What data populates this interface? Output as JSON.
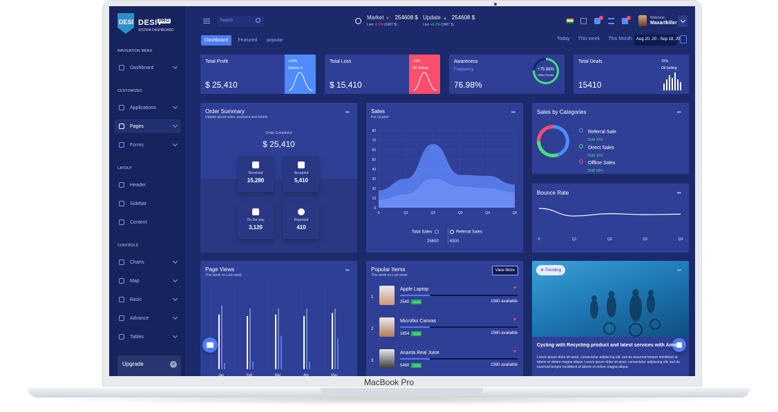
{
  "device": {
    "label": "MacBook Pro"
  },
  "sidebar": {
    "brand": "DESIT",
    "brand_badge": "PRO",
    "brand_mark": "DESIT",
    "brand_sub": "SISTEM DASHBOARD",
    "sections": [
      "NAVIGATION MENU",
      "CUSTOMIZED",
      "LAYOUT",
      "CONTROLS"
    ],
    "items": [
      {
        "label": "Dashboard"
      },
      {
        "label": "Applications"
      },
      {
        "label": "Pages"
      },
      {
        "label": "Forms"
      },
      {
        "label": "Header"
      },
      {
        "label": "Sidebar"
      },
      {
        "label": "Content"
      },
      {
        "label": "Charts"
      },
      {
        "label": "Map"
      },
      {
        "label": "Basic"
      },
      {
        "label": "Advance"
      },
      {
        "label": "Tables"
      }
    ],
    "upgrade": "Upgrade"
  },
  "topbar": {
    "search_placeholder": "Search",
    "market": {
      "label": "Market",
      "value": "254608 $",
      "sub_prefix": "Live",
      "change": "-0.1%",
      "delta": "(2487 $)"
    },
    "update": {
      "label": "Update",
      "value": "254608 $",
      "sub_prefix": "Live",
      "change": "+0.1%",
      "delta": "(2487 $)"
    },
    "welcome": "Welcome,",
    "user": "Maxartkiller"
  },
  "tabs": [
    "Dashboard",
    "Featured",
    "popular"
  ],
  "periods": [
    "Today",
    "This week",
    "This Month"
  ],
  "date_range": "Aug 20, 20 - Sep 18, 20",
  "stats": [
    {
      "title": "Total Profit",
      "value": "$ 25,410",
      "pct": "+20%",
      "side": "Quarter 3",
      "color": "#4e8cff"
    },
    {
      "title": "Total Loss",
      "value": "$ 15,410",
      "pct": "-20%",
      "side": "Oil Selling",
      "color": "#ff4d6d"
    },
    {
      "title": "Awareness",
      "sub": "Frequency",
      "value": "76.98%",
      "ring_pct": "+75.98%",
      "ring_label": "Male-Female",
      "ring_fill": 0.76
    },
    {
      "title": "Total Deals",
      "value": "15410",
      "pct": "15%",
      "side": "Oil Selling"
    }
  ],
  "order_summary": {
    "title": "Order Summary",
    "subtitle": "Update about sales, payment and tickets",
    "completed_label": "Order Completed",
    "completed_value": "$ 25,410",
    "cards": [
      {
        "label": "Received",
        "value": "15,280"
      },
      {
        "label": "Accepted",
        "value": "5,410"
      },
      {
        "label": "On the way",
        "value": "3,120"
      },
      {
        "label": "Reported",
        "value": "410"
      }
    ]
  },
  "sales": {
    "title": "Sales",
    "subtitle": "Per Quarter",
    "legend": [
      {
        "name": "Total Sales",
        "value": "25600"
      },
      {
        "name": "Referral Sales",
        "value": "6500"
      }
    ]
  },
  "chart_data": [
    {
      "type": "area",
      "x": [
        "0",
        "Q1",
        "Q2",
        "Q3",
        "Q4",
        "Q5"
      ],
      "ylim": [
        0,
        80
      ],
      "yticks": [
        0,
        10,
        20,
        30,
        40,
        50,
        60,
        70,
        80
      ],
      "series": [
        {
          "name": "Total Sales",
          "values": [
            18,
            30,
            66,
            34,
            33,
            24
          ]
        },
        {
          "name": "Referral Sales",
          "values": [
            8,
            14,
            30,
            22,
            20,
            16
          ]
        }
      ]
    },
    {
      "type": "line",
      "x": [
        "0",
        "Q1",
        "Q2",
        "Q3",
        "Q4"
      ],
      "values": [
        1.0,
        0.45,
        0.62,
        0.55,
        0.58
      ]
    },
    {
      "type": "bar",
      "categories": [
        "Jan",
        "Feb",
        "Mar",
        "Apr",
        "May"
      ],
      "series": [
        {
          "values": [
            72,
            70,
            72,
            70,
            74
          ]
        },
        {
          "values": [
            84,
            80,
            80,
            80,
            80
          ]
        },
        {
          "values": [
            8,
            10,
            44,
            10,
            40
          ]
        }
      ]
    }
  ],
  "sales_by_categories": {
    "title": "Sales by Categories",
    "items": [
      {
        "name": "Referral Sale",
        "value": "2548",
        "pct": "20%",
        "color": "#4e8cff"
      },
      {
        "name": "Direct Sales",
        "value": "2548",
        "pct": "15%",
        "color": "#47e07a"
      },
      {
        "name": "Offline Sales",
        "value": "2548",
        "pct": "18%",
        "color": "#ff4d6d"
      }
    ]
  },
  "bounce_rate": {
    "title": "Bounce Rate"
  },
  "page_views": {
    "title": "Page Views",
    "subtitle": "This week vs Last week"
  },
  "popular_items": {
    "title": "Popular Items",
    "subtitle": "This week vs Last week",
    "view_more": "View More",
    "items": [
      {
        "num": "1",
        "name": "Apple Laptop",
        "price": "2540",
        "tag": "+21%",
        "available": "1560 available",
        "progress": 0.25
      },
      {
        "num": "2",
        "name": "Microfax Canvas",
        "price": "1654",
        "tag": "+21%",
        "available": "1560 available",
        "progress": 0.25
      },
      {
        "num": "3",
        "name": "Ananta Real Juice",
        "price": "5460",
        "tag": "+21%",
        "available": "1560 available",
        "progress": 0.25
      }
    ]
  },
  "trending": {
    "badge": "Trending",
    "title": "Cycling with Recycling product and latest services with Aman Ahuja",
    "text": "Lorem ipsum dolor sit amet, consectetur adipiscing elit, sed do eiusmod tempor incididunt ut labore et dolore magna aliqua. Lorem ipsum dolor sit amet, consectetur adipiscing elit, sed do eiusmod tempor incididunt ut labore et dolore magna aliqua."
  }
}
